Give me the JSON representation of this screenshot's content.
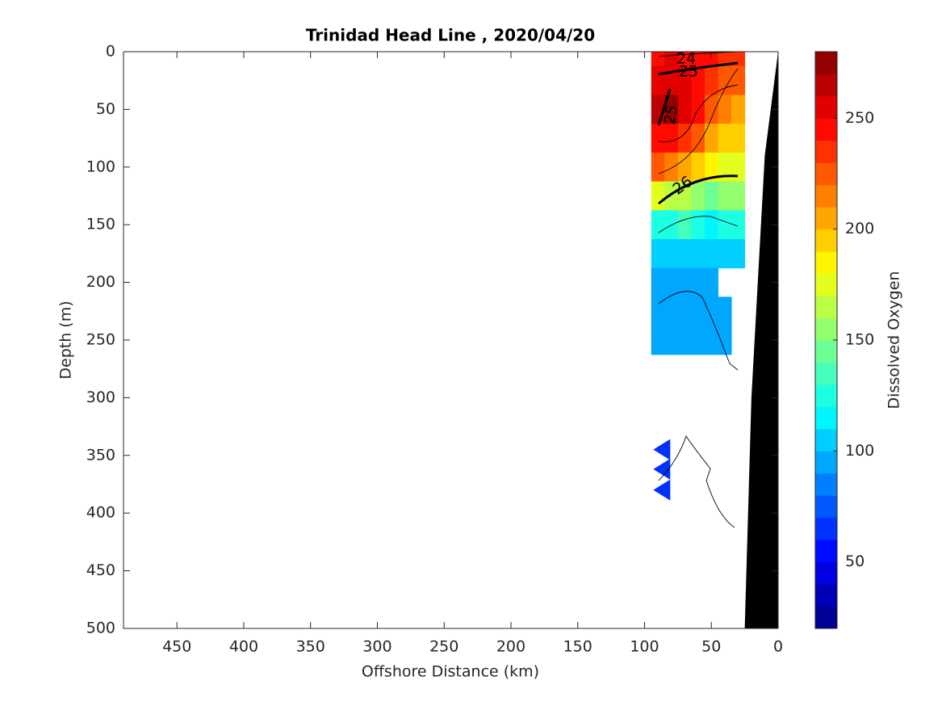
{
  "chart_data": {
    "type": "contour",
    "title": "Trinidad Head Line , 2020/04/20",
    "xlabel": "Offshore Distance (km)",
    "ylabel": "Depth (m)",
    "xlim": [
      490,
      0
    ],
    "xticks": [
      450,
      400,
      350,
      300,
      250,
      200,
      150,
      100,
      50,
      0
    ],
    "ylim": [
      0,
      500
    ],
    "yticks": [
      0,
      50,
      100,
      150,
      200,
      250,
      300,
      350,
      400,
      450,
      500
    ],
    "x": [
      90,
      80,
      70,
      60,
      50,
      40,
      30
    ],
    "depth": [
      0,
      25,
      50,
      75,
      100,
      125,
      150,
      175,
      200,
      225,
      250
    ],
    "values": [
      [
        240,
        250,
        245,
        245,
        240,
        235,
        230
      ],
      [
        250,
        255,
        250,
        240,
        230,
        225,
        220
      ],
      [
        265,
        270,
        255,
        240,
        225,
        215,
        205
      ],
      [
        245,
        245,
        235,
        220,
        205,
        195,
        190
      ],
      [
        220,
        215,
        205,
        195,
        180,
        175,
        170
      ],
      [
        170,
        165,
        160,
        150,
        145,
        150,
        155
      ],
      [
        120,
        125,
        130,
        120,
        115,
        120,
        125
      ],
      [
        100,
        105,
        105,
        100,
        100,
        100,
        100
      ],
      [
        90,
        95,
        95,
        95,
        90,
        null,
        null
      ],
      [
        90,
        90,
        95,
        95,
        90,
        90,
        null
      ],
      [
        90,
        90,
        90,
        90,
        90,
        90,
        null
      ]
    ],
    "deep_samples": {
      "x": [
        85,
        85,
        85
      ],
      "depth": [
        345,
        362,
        380
      ],
      "values": [
        60,
        60,
        60
      ]
    },
    "bottom": {
      "x": [
        0,
        10,
        20,
        25
      ],
      "depth": [
        0,
        90,
        300,
        500
      ],
      "color": "#000000"
    },
    "contour_labels": [
      24,
      25,
      25,
      26
    ],
    "colorbar": {
      "label": "Dissolved Oxygen",
      "clim": [
        20,
        280
      ],
      "ticks": [
        50,
        100,
        150,
        200,
        250
      ],
      "levels": [
        20,
        30,
        40,
        50,
        60,
        70,
        80,
        90,
        100,
        110,
        120,
        130,
        140,
        150,
        160,
        170,
        180,
        190,
        200,
        210,
        220,
        230,
        240,
        250,
        260,
        270,
        280
      ]
    }
  }
}
